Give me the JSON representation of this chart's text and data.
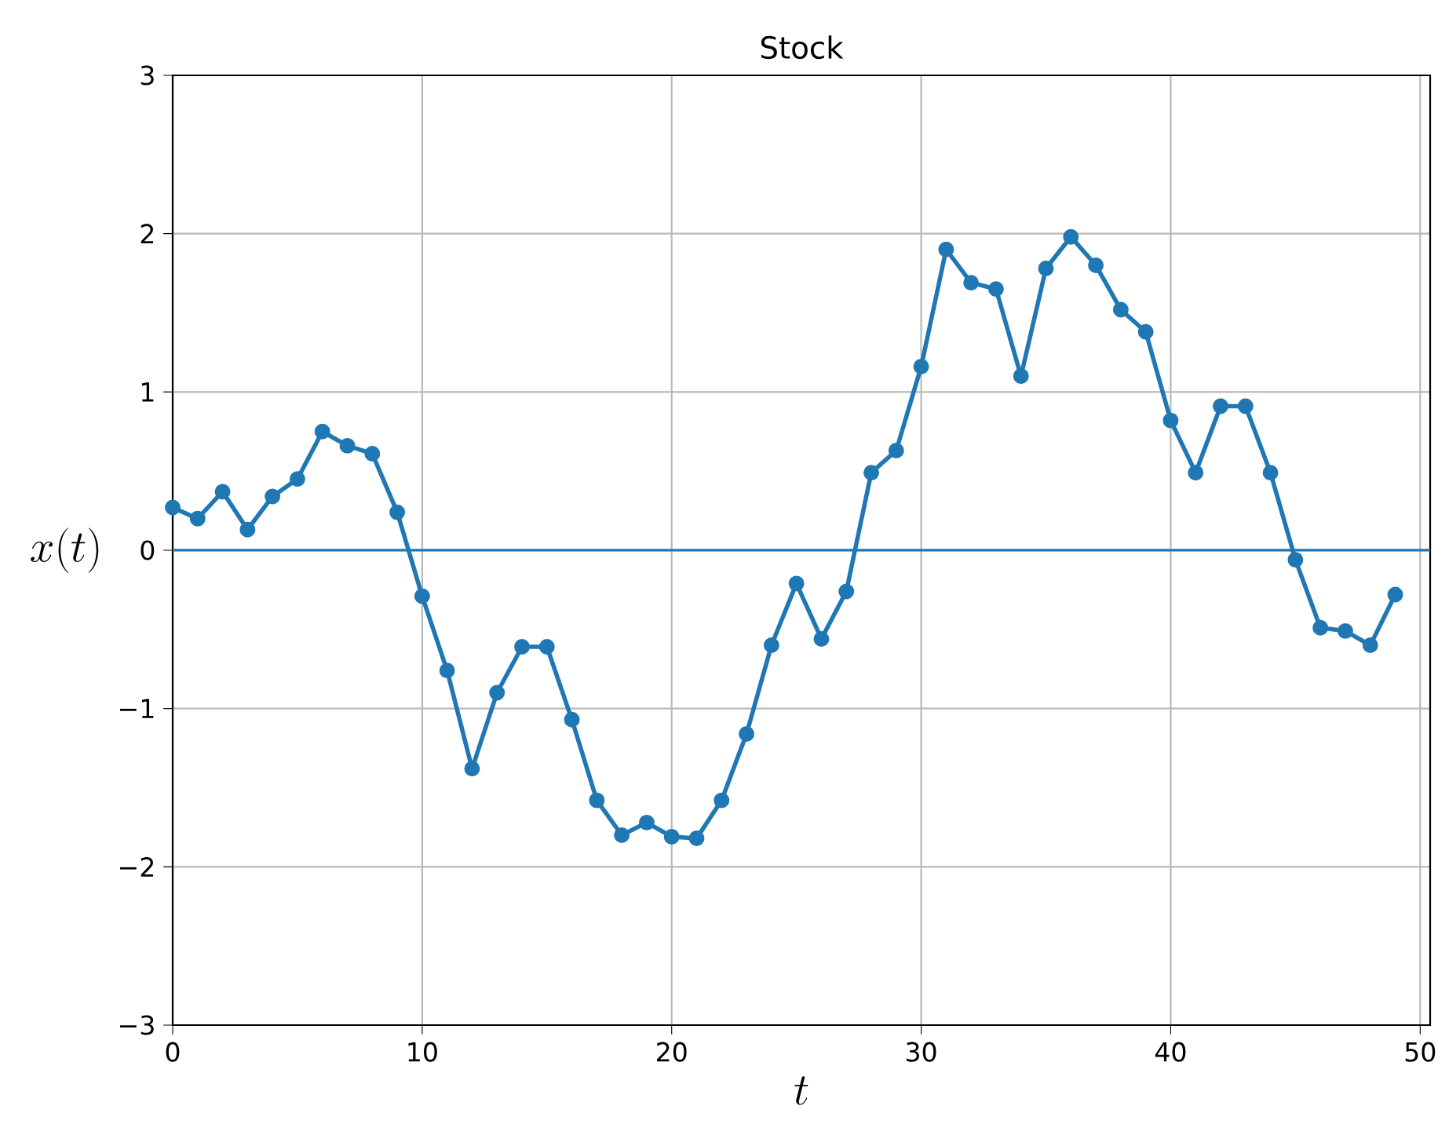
{
  "chart_data": {
    "type": "line",
    "title": "Stock",
    "xlabel": "t",
    "ylabel": "x(t)",
    "x": [
      0,
      1,
      2,
      3,
      4,
      5,
      6,
      7,
      8,
      9,
      10,
      11,
      12,
      13,
      14,
      15,
      16,
      17,
      18,
      19,
      20,
      21,
      22,
      23,
      24,
      25,
      26,
      27,
      28,
      29,
      30,
      31,
      32,
      33,
      34,
      35,
      36,
      37,
      38,
      39,
      40,
      41,
      42,
      43,
      44,
      45,
      46,
      47,
      48,
      49
    ],
    "series": [
      {
        "color": "#1f77b4",
        "values": [
          0.27,
          0.2,
          0.37,
          0.13,
          0.34,
          0.45,
          0.75,
          0.66,
          0.61,
          0.24,
          -0.29,
          -0.76,
          -1.38,
          -0.9,
          -0.61,
          -0.61,
          -1.07,
          -1.58,
          -1.8,
          -1.72,
          -1.81,
          -1.82,
          -1.58,
          -1.16,
          -0.6,
          -0.21,
          -0.56,
          -0.26,
          0.49,
          0.63,
          1.16,
          1.9,
          1.69,
          1.65,
          1.1,
          1.78,
          1.98,
          1.8,
          1.52,
          1.38,
          0.82,
          0.49,
          0.91,
          0.91,
          0.49,
          -0.06,
          -0.49,
          -0.51,
          -0.6,
          -0.28
        ]
      }
    ],
    "xlim": [
      0,
      50.4
    ],
    "ylim": [
      -3,
      3
    ],
    "xticks": [
      0,
      10,
      20,
      30,
      40,
      50
    ],
    "yticks": [
      {
        "value": -3,
        "label": "−3"
      },
      {
        "value": -2,
        "label": "−2"
      },
      {
        "value": -1,
        "label": "−1"
      },
      0,
      1,
      2,
      3
    ],
    "ref_lines": [
      {
        "axis": "y",
        "value": 0,
        "color": "#1f77b4"
      }
    ],
    "grid": true,
    "marker": "circle",
    "line_style": "solid"
  }
}
